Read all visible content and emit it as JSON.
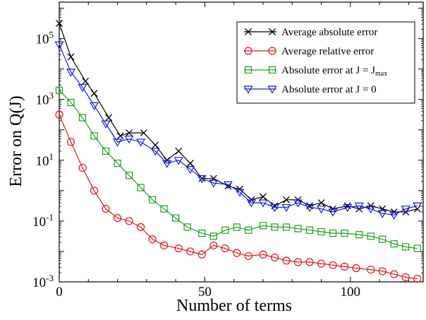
{
  "chart_data": {
    "type": "line",
    "title": "",
    "xlabel": "Number of terms",
    "ylabel": "Error on Q(J)",
    "xlim": [
      0,
      125
    ],
    "ylim_log10": [
      -3,
      6.2
    ],
    "y_scale": "log",
    "grid": false,
    "legend_position": "top-right",
    "x_ticks": [
      0,
      50,
      100
    ],
    "y_ticks": [
      {
        "value_log10": 5,
        "base": "10",
        "exp": "5"
      },
      {
        "value_log10": 3,
        "base": "10",
        "exp": "3"
      },
      {
        "value_log10": 1,
        "base": "10",
        "exp": "1"
      },
      {
        "value_log10": -1,
        "base": "10",
        "exp": "-1"
      },
      {
        "value_log10": -3,
        "base": "10",
        "exp": "-3"
      }
    ],
    "legend": [
      {
        "label_main": "Average absolute error",
        "label_sub": ""
      },
      {
        "label_main": "Average relative error",
        "label_sub": ""
      },
      {
        "label_main": "Absolute error at J = J",
        "label_sub": "max"
      },
      {
        "label_main": "Absolute error at J = 0",
        "label_sub": ""
      }
    ],
    "series": [
      {
        "color": "#000000",
        "marker": "x",
        "x": [
          0,
          4,
          9,
          12,
          17,
          21,
          24,
          29,
          33,
          37,
          41,
          45,
          49,
          53,
          58,
          62,
          66,
          70,
          74,
          78,
          82,
          86,
          90,
          94,
          99,
          103,
          107,
          111,
          115,
          119,
          123
        ],
        "log10y": [
          5.5,
          4.4,
          3.6,
          3.2,
          2.4,
          1.8,
          1.9,
          1.9,
          1.5,
          1.0,
          1.3,
          0.9,
          0.4,
          0.4,
          0.15,
          0.05,
          -0.3,
          -0.2,
          -0.5,
          -0.3,
          -0.3,
          -0.5,
          -0.4,
          -0.6,
          -0.5,
          -0.6,
          -0.5,
          -0.6,
          -0.7,
          -0.7,
          -0.6
        ]
      },
      {
        "color": "#e8121a",
        "marker": "o",
        "x": [
          0,
          4,
          8,
          12,
          16,
          20,
          24,
          28,
          32,
          36,
          41,
          45,
          49,
          53,
          57,
          61,
          65,
          70,
          74,
          78,
          82,
          86,
          90,
          94,
          98,
          102,
          107,
          111,
          115,
          119,
          123
        ],
        "log10y": [
          2.5,
          1.6,
          0.75,
          0.0,
          -0.6,
          -0.9,
          -1.0,
          -1.2,
          -1.6,
          -1.8,
          -1.9,
          -2.0,
          -2.1,
          -1.8,
          -1.9,
          -2.05,
          -2.15,
          -2.1,
          -2.2,
          -2.3,
          -2.35,
          -2.35,
          -2.4,
          -2.45,
          -2.5,
          -2.55,
          -2.6,
          -2.65,
          -2.75,
          -2.85,
          -2.9
        ]
      },
      {
        "color": "#1f9e1f",
        "marker": "s",
        "x": [
          0,
          4,
          8,
          12,
          16,
          20,
          24,
          28,
          32,
          36,
          40,
          44,
          49,
          53,
          57,
          61,
          65,
          70,
          74,
          78,
          82,
          86,
          90,
          94,
          98,
          103,
          107,
          111,
          115,
          119,
          123
        ],
        "log10y": [
          3.3,
          2.9,
          2.4,
          1.8,
          1.3,
          0.9,
          0.5,
          0.1,
          -0.3,
          -0.6,
          -0.9,
          -1.2,
          -1.4,
          -1.5,
          -1.3,
          -1.2,
          -1.3,
          -1.15,
          -1.2,
          -1.2,
          -1.25,
          -1.3,
          -1.35,
          -1.4,
          -1.4,
          -1.45,
          -1.5,
          -1.6,
          -1.75,
          -1.85,
          -1.9
        ]
      },
      {
        "color": "#1a1ae0",
        "marker": "v",
        "x": [
          0,
          4,
          8,
          12,
          16,
          20,
          24,
          28,
          33,
          37,
          41,
          45,
          49,
          53,
          58,
          62,
          66,
          70,
          74,
          78,
          82,
          86,
          90,
          94,
          99,
          103,
          107,
          111,
          115,
          119,
          123
        ],
        "log10y": [
          4.8,
          3.9,
          3.4,
          2.8,
          2.2,
          1.6,
          1.7,
          1.6,
          1.3,
          0.9,
          1.0,
          0.7,
          0.4,
          0.25,
          0.2,
          -0.05,
          -0.4,
          -0.4,
          -0.55,
          -0.55,
          -0.4,
          -0.55,
          -0.6,
          -0.7,
          -0.55,
          -0.5,
          -0.6,
          -0.75,
          -0.8,
          -0.6,
          -0.5
        ]
      }
    ]
  }
}
